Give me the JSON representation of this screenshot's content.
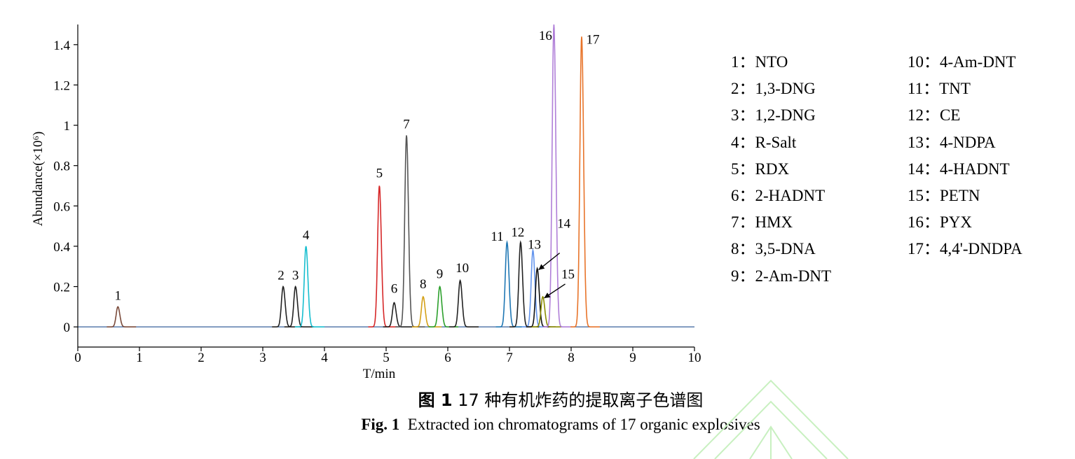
{
  "chart_data": {
    "type": "line",
    "xlabel": "T/min",
    "ylabel": "Abundance(×10⁶)",
    "xlim": [
      0,
      10
    ],
    "ylim": [
      -0.1,
      1.5
    ],
    "xticks": [
      "0",
      "1",
      "2",
      "3",
      "4",
      "5",
      "6",
      "7",
      "8",
      "9",
      "10"
    ],
    "yticks": [
      "0",
      "0.2",
      "0.4",
      "0.6",
      "0.8",
      "1",
      "1.2",
      "1.4"
    ],
    "grid": false,
    "legend_position": "right",
    "peaks": [
      {
        "id": "1",
        "name": "NTO",
        "rt": 0.65,
        "height": 0.1,
        "color": "#7a4a3a"
      },
      {
        "id": "2",
        "name": "1,3-DNG",
        "rt": 3.33,
        "height": 0.2,
        "color": "#222222"
      },
      {
        "id": "3",
        "name": "1,2-DNG",
        "rt": 3.53,
        "height": 0.2,
        "color": "#222222"
      },
      {
        "id": "4",
        "name": "R-Salt",
        "rt": 3.7,
        "height": 0.4,
        "color": "#17becf"
      },
      {
        "id": "5",
        "name": "RDX",
        "rt": 4.89,
        "height": 0.7,
        "color": "#d62728"
      },
      {
        "id": "6",
        "name": "2-HADNT",
        "rt": 5.13,
        "height": 0.12,
        "color": "#222222"
      },
      {
        "id": "7",
        "name": "HMX",
        "rt": 5.33,
        "height": 0.95,
        "color": "#555555"
      },
      {
        "id": "8",
        "name": "3,5-DNA",
        "rt": 5.6,
        "height": 0.15,
        "color": "#d4a017"
      },
      {
        "id": "9",
        "name": "2-Am-DNT",
        "rt": 5.87,
        "height": 0.2,
        "color": "#2ca02c"
      },
      {
        "id": "10",
        "name": "4-Am-DNT",
        "rt": 6.2,
        "height": 0.23,
        "color": "#222222"
      },
      {
        "id": "11",
        "name": "TNT",
        "rt": 6.96,
        "height": 0.42,
        "color": "#1f77b4"
      },
      {
        "id": "12",
        "name": "CE",
        "rt": 7.18,
        "height": 0.42,
        "color": "#222222"
      },
      {
        "id": "13",
        "name": "4-NDPA",
        "rt": 7.38,
        "height": 0.38,
        "color": "#6495ed"
      },
      {
        "id": "14",
        "name": "4-HADNT",
        "rt": 7.45,
        "height": 0.29,
        "color": "#111111"
      },
      {
        "id": "15",
        "name": "PETN",
        "rt": 7.54,
        "height": 0.15,
        "color": "#8b8b00"
      },
      {
        "id": "16",
        "name": "PYX",
        "rt": 7.72,
        "height": 1.5,
        "color": "#b07fd8"
      },
      {
        "id": "17",
        "name": "4,4'-DNDPA",
        "rt": 8.17,
        "height": 1.44,
        "color": "#e8742a"
      }
    ]
  },
  "legend": {
    "column1": [
      {
        "num": "1",
        "sep": "：",
        "name": "NTO"
      },
      {
        "num": "2",
        "sep": "：",
        "name": "1,3-DNG"
      },
      {
        "num": "3",
        "sep": "：",
        "name": "1,2-DNG"
      },
      {
        "num": "4",
        "sep": "：",
        "name": "R-Salt"
      },
      {
        "num": "5",
        "sep": "：",
        "name": "RDX"
      },
      {
        "num": "6",
        "sep": "：",
        "name": "2-HADNT"
      },
      {
        "num": "7",
        "sep": "：",
        "name": "HMX"
      },
      {
        "num": "8",
        "sep": "：",
        "name": "3,5-DNA"
      },
      {
        "num": "9",
        "sep": "：",
        "name": "2-Am-DNT"
      }
    ],
    "column2": [
      {
        "num": "10",
        "sep": "：",
        "name": "4-Am-DNT"
      },
      {
        "num": "11",
        "sep": "：",
        "name": "TNT"
      },
      {
        "num": "12",
        "sep": "：",
        "name": "CE"
      },
      {
        "num": "13",
        "sep": "：",
        "name": "4-NDPA"
      },
      {
        "num": "14",
        "sep": "：",
        "name": "4-HADNT"
      },
      {
        "num": "15",
        "sep": "：",
        "name": "PETN"
      },
      {
        "num": "16",
        "sep": "：",
        "name": "PYX"
      },
      {
        "num": "17",
        "sep": "：",
        "name": "4,4'-DNDPA"
      }
    ]
  },
  "caption": {
    "zh_prefix": "图 1",
    "zh_text": " 17 种有机炸药的提取离子色谱图",
    "en_prefix": "Fig. 1",
    "en_text": "  Extracted ion chromatograms of 17 organic explosives"
  },
  "colors": {
    "axis": "#000000",
    "watermark": "#c8f0c0"
  }
}
